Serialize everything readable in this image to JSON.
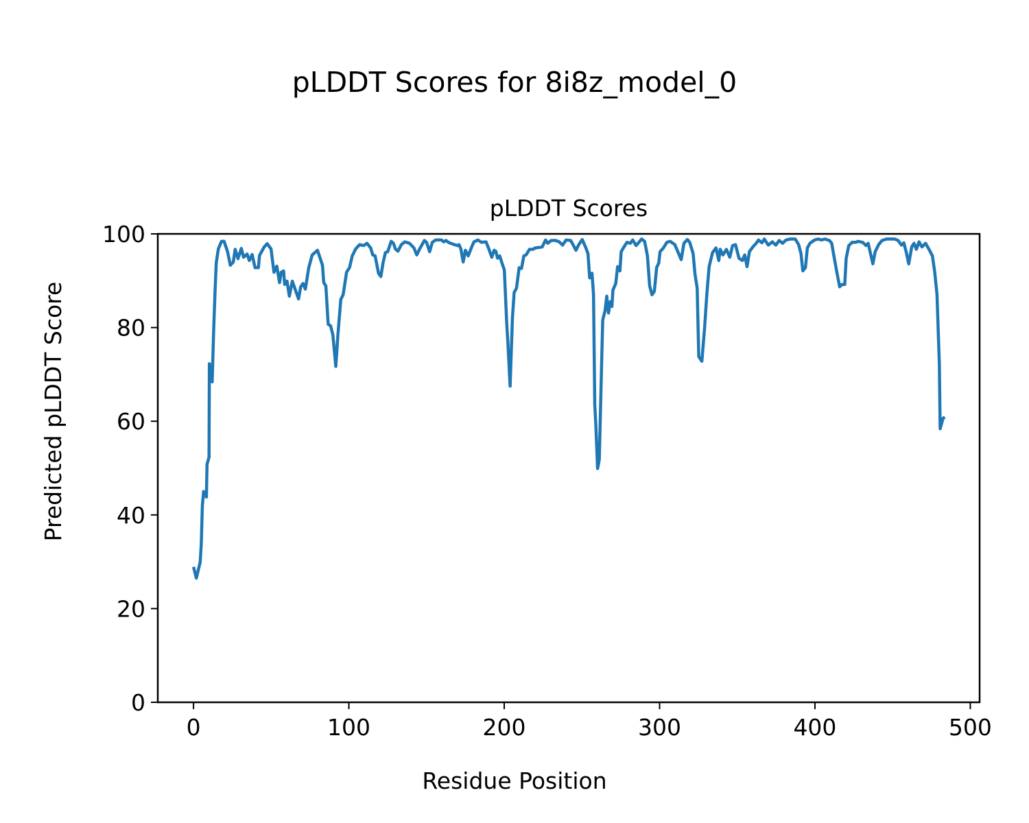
{
  "figure_title": "pLDDT Scores for 8i8z_model_0",
  "chart_data": {
    "type": "line",
    "title": "pLDDT Scores",
    "xlabel": "Residue Position",
    "ylabel": "Predicted pLDDT Score",
    "xlim": [
      -23,
      506
    ],
    "ylim": [
      0,
      100
    ],
    "xticks": [
      0,
      100,
      200,
      300,
      400,
      500
    ],
    "yticks": [
      0,
      20,
      40,
      60,
      80,
      100
    ],
    "grid": false,
    "color": "#1f77b4",
    "points": [
      [
        0,
        28.9
      ],
      [
        1.8,
        26.5
      ],
      [
        4.3,
        29.9
      ],
      [
        5,
        33.8
      ],
      [
        5.7,
        42
      ],
      [
        6.5,
        45
      ],
      [
        8.3,
        43.8
      ],
      [
        8.7,
        50.8
      ],
      [
        10,
        52.3
      ],
      [
        10.2,
        72.3
      ],
      [
        12,
        68.4
      ],
      [
        13,
        79.6
      ],
      [
        13.8,
        87
      ],
      [
        14.6,
        93.8
      ],
      [
        16,
        96.8
      ],
      [
        18,
        98.4
      ],
      [
        19.7,
        98.4
      ],
      [
        21.9,
        96.2
      ],
      [
        23.7,
        93.3
      ],
      [
        25.6,
        94
      ],
      [
        26.8,
        96.7
      ],
      [
        28.6,
        94.7
      ],
      [
        30.8,
        96.9
      ],
      [
        32.2,
        95
      ],
      [
        34.5,
        95.7
      ],
      [
        35.9,
        94.3
      ],
      [
        37.7,
        95.6
      ],
      [
        39.6,
        92.8
      ],
      [
        41.8,
        92.8
      ],
      [
        42.5,
        95.4
      ],
      [
        45.5,
        97.2
      ],
      [
        47.4,
        97.9
      ],
      [
        49.9,
        96.8
      ],
      [
        51.8,
        91.8
      ],
      [
        53.6,
        93.1
      ],
      [
        55.4,
        89.6
      ],
      [
        56.5,
        91.8
      ],
      [
        58,
        92.1
      ],
      [
        58.7,
        89.2
      ],
      [
        60.2,
        89.9
      ],
      [
        61.7,
        86.7
      ],
      [
        63.6,
        89.9
      ],
      [
        65.4,
        88.2
      ],
      [
        67.6,
        86.1
      ],
      [
        69,
        88.7
      ],
      [
        70.5,
        89.4
      ],
      [
        72,
        88.2
      ],
      [
        74.2,
        92.8
      ],
      [
        76.4,
        95.5
      ],
      [
        79.8,
        96.5
      ],
      [
        83,
        93.3
      ],
      [
        83.8,
        89.6
      ],
      [
        85.2,
        88.9
      ],
      [
        86.7,
        80.7
      ],
      [
        88.2,
        80.4
      ],
      [
        89.7,
        78.5
      ],
      [
        91.6,
        71.7
      ],
      [
        93,
        78.7
      ],
      [
        94.8,
        86
      ],
      [
        96.3,
        87
      ],
      [
        98.5,
        91.8
      ],
      [
        100.4,
        92.8
      ],
      [
        102.2,
        95.3
      ],
      [
        104.4,
        96.8
      ],
      [
        106.9,
        97.7
      ],
      [
        109.5,
        97.5
      ],
      [
        111.7,
        98
      ],
      [
        114,
        97
      ],
      [
        115.4,
        95.5
      ],
      [
        116.9,
        95.3
      ],
      [
        119.1,
        91.6
      ],
      [
        120.6,
        90.9
      ],
      [
        122,
        93.8
      ],
      [
        123.5,
        96
      ],
      [
        125,
        96.2
      ],
      [
        127.2,
        98.4
      ],
      [
        128.7,
        98
      ],
      [
        129.9,
        96.8
      ],
      [
        131.6,
        96.3
      ],
      [
        133.8,
        97.7
      ],
      [
        136,
        98.3
      ],
      [
        139,
        98
      ],
      [
        141.9,
        97
      ],
      [
        143.7,
        95.5
      ],
      [
        145.6,
        96.8
      ],
      [
        148.6,
        98.6
      ],
      [
        150,
        98.2
      ],
      [
        152,
        96.2
      ],
      [
        153.7,
        98.2
      ],
      [
        155.9,
        98.7
      ],
      [
        159.6,
        98.7
      ],
      [
        161.1,
        98.3
      ],
      [
        162.5,
        98.6
      ],
      [
        164,
        98.2
      ],
      [
        167,
        97.8
      ],
      [
        169.9,
        97.5
      ],
      [
        170.9,
        97.7
      ],
      [
        172.1,
        96.8
      ],
      [
        173.6,
        94
      ],
      [
        175,
        96.5
      ],
      [
        176.8,
        95.3
      ],
      [
        178.8,
        97
      ],
      [
        180.5,
        98.3
      ],
      [
        183.1,
        98.7
      ],
      [
        185.3,
        98.2
      ],
      [
        188.3,
        98.3
      ],
      [
        190.2,
        96.7
      ],
      [
        192,
        95
      ],
      [
        193.5,
        96.5
      ],
      [
        194.6,
        96.3
      ],
      [
        195.7,
        94.8
      ],
      [
        197.1,
        95.3
      ],
      [
        198.3,
        94
      ],
      [
        200.1,
        92.3
      ],
      [
        201.6,
        81.1
      ],
      [
        202.3,
        77.2
      ],
      [
        203.8,
        67.5
      ],
      [
        205.3,
        82.1
      ],
      [
        206.4,
        87.5
      ],
      [
        207.9,
        88.4
      ],
      [
        209.6,
        92.8
      ],
      [
        211.1,
        92.6
      ],
      [
        212.6,
        95.3
      ],
      [
        214.1,
        95.5
      ],
      [
        216.3,
        96.7
      ],
      [
        218.5,
        96.7
      ],
      [
        220,
        97
      ],
      [
        224.4,
        97.2
      ],
      [
        226.6,
        98.7
      ],
      [
        228,
        98
      ],
      [
        230.3,
        98.6
      ],
      [
        233.2,
        98.6
      ],
      [
        235.4,
        98.3
      ],
      [
        237.6,
        97.6
      ],
      [
        239.8,
        98.7
      ],
      [
        242.8,
        98.6
      ],
      [
        244.3,
        97.7
      ],
      [
        246.2,
        96.5
      ],
      [
        248,
        97.7
      ],
      [
        250.2,
        98.8
      ],
      [
        252.3,
        97.2
      ],
      [
        253.9,
        95.8
      ],
      [
        255,
        90.6
      ],
      [
        256.5,
        91.6
      ],
      [
        257.5,
        87
      ],
      [
        258.3,
        63.5
      ],
      [
        259,
        59.2
      ],
      [
        260.1,
        49.9
      ],
      [
        261.2,
        51.8
      ],
      [
        262.7,
        72.3
      ],
      [
        263.4,
        81.6
      ],
      [
        264.9,
        83.6
      ],
      [
        266,
        86.7
      ],
      [
        267.1,
        83.1
      ],
      [
        268.3,
        85.5
      ],
      [
        269.3,
        84.5
      ],
      [
        270,
        88
      ],
      [
        271.8,
        89.4
      ],
      [
        273,
        93
      ],
      [
        274.5,
        92.1
      ],
      [
        275.3,
        96.2
      ],
      [
        276.7,
        97
      ],
      [
        279,
        98.2
      ],
      [
        281.2,
        98
      ],
      [
        282.7,
        98.7
      ],
      [
        284.9,
        97.5
      ],
      [
        288.5,
        98.9
      ],
      [
        290.4,
        98.4
      ],
      [
        292.2,
        95.3
      ],
      [
        293.6,
        88.9
      ],
      [
        295.1,
        87
      ],
      [
        296.6,
        87.7
      ],
      [
        298.1,
        92.8
      ],
      [
        299.5,
        93.8
      ],
      [
        300.3,
        96.2
      ],
      [
        302.5,
        97
      ],
      [
        304.7,
        98.2
      ],
      [
        306.8,
        98.4
      ],
      [
        309.8,
        97.7
      ],
      [
        312,
        96
      ],
      [
        313.9,
        94.5
      ],
      [
        315.7,
        98
      ],
      [
        317.9,
        98.8
      ],
      [
        319.4,
        98.2
      ],
      [
        321.6,
        95.8
      ],
      [
        322.8,
        91.4
      ],
      [
        324.2,
        88.4
      ],
      [
        325.2,
        73.8
      ],
      [
        327.2,
        72.8
      ],
      [
        329,
        80.1
      ],
      [
        330.4,
        87
      ],
      [
        331.9,
        93
      ],
      [
        334.1,
        96
      ],
      [
        336.3,
        97
      ],
      [
        338.1,
        94.3
      ],
      [
        339,
        96.7
      ],
      [
        340.8,
        95.5
      ],
      [
        343,
        96.7
      ],
      [
        345.2,
        95
      ],
      [
        347,
        97.5
      ],
      [
        348.9,
        97.7
      ],
      [
        351.1,
        94.8
      ],
      [
        353.3,
        94.3
      ],
      [
        354.8,
        95.5
      ],
      [
        356.3,
        93
      ],
      [
        357.8,
        96.2
      ],
      [
        360,
        97.2
      ],
      [
        362.2,
        98
      ],
      [
        363.7,
        98.7
      ],
      [
        365.9,
        98.1
      ],
      [
        367.4,
        98.9
      ],
      [
        370,
        97.6
      ],
      [
        372.6,
        98.3
      ],
      [
        374.8,
        97.6
      ],
      [
        377,
        98.6
      ],
      [
        379.2,
        98
      ],
      [
        381.4,
        98.7
      ],
      [
        384.3,
        98.9
      ],
      [
        387.3,
        98.9
      ],
      [
        389.5,
        97.7
      ],
      [
        391,
        95.8
      ],
      [
        392.2,
        92.1
      ],
      [
        393.9,
        92.8
      ],
      [
        395.1,
        97
      ],
      [
        396.8,
        98
      ],
      [
        399.8,
        98.7
      ],
      [
        402,
        98.9
      ],
      [
        404.2,
        98.7
      ],
      [
        406.4,
        98.9
      ],
      [
        409.3,
        98.6
      ],
      [
        410.8,
        98
      ],
      [
        412.2,
        95.3
      ],
      [
        414.1,
        91.8
      ],
      [
        415.9,
        88.7
      ],
      [
        417.4,
        89.2
      ],
      [
        419.2,
        89.2
      ],
      [
        420.1,
        94.8
      ],
      [
        421.8,
        97.5
      ],
      [
        424,
        98.2
      ],
      [
        426.3,
        98.2
      ],
      [
        427.7,
        98.4
      ],
      [
        430.7,
        98.2
      ],
      [
        432.9,
        97.5
      ],
      [
        434.3,
        98
      ],
      [
        435.8,
        95.8
      ],
      [
        437.3,
        93.6
      ],
      [
        438.8,
        96.2
      ],
      [
        441,
        97.7
      ],
      [
        443.2,
        98.6
      ],
      [
        446.1,
        98.9
      ],
      [
        449.1,
        98.9
      ],
      [
        451.3,
        98.9
      ],
      [
        453.5,
        98.6
      ],
      [
        455.7,
        97.6
      ],
      [
        457.2,
        98.1
      ],
      [
        458.7,
        96.2
      ],
      [
        460.4,
        93.6
      ],
      [
        462.3,
        97.2
      ],
      [
        463.8,
        98
      ],
      [
        465.3,
        96.7
      ],
      [
        467,
        98.3
      ],
      [
        468.9,
        97.2
      ],
      [
        471.2,
        98
      ],
      [
        473.4,
        96.7
      ],
      [
        475.6,
        95.3
      ],
      [
        477.1,
        91.8
      ],
      [
        478.6,
        87
      ],
      [
        480.1,
        72.3
      ],
      [
        480.6,
        58.4
      ],
      [
        482.4,
        60.6
      ],
      [
        483.6,
        60.9
      ]
    ]
  }
}
